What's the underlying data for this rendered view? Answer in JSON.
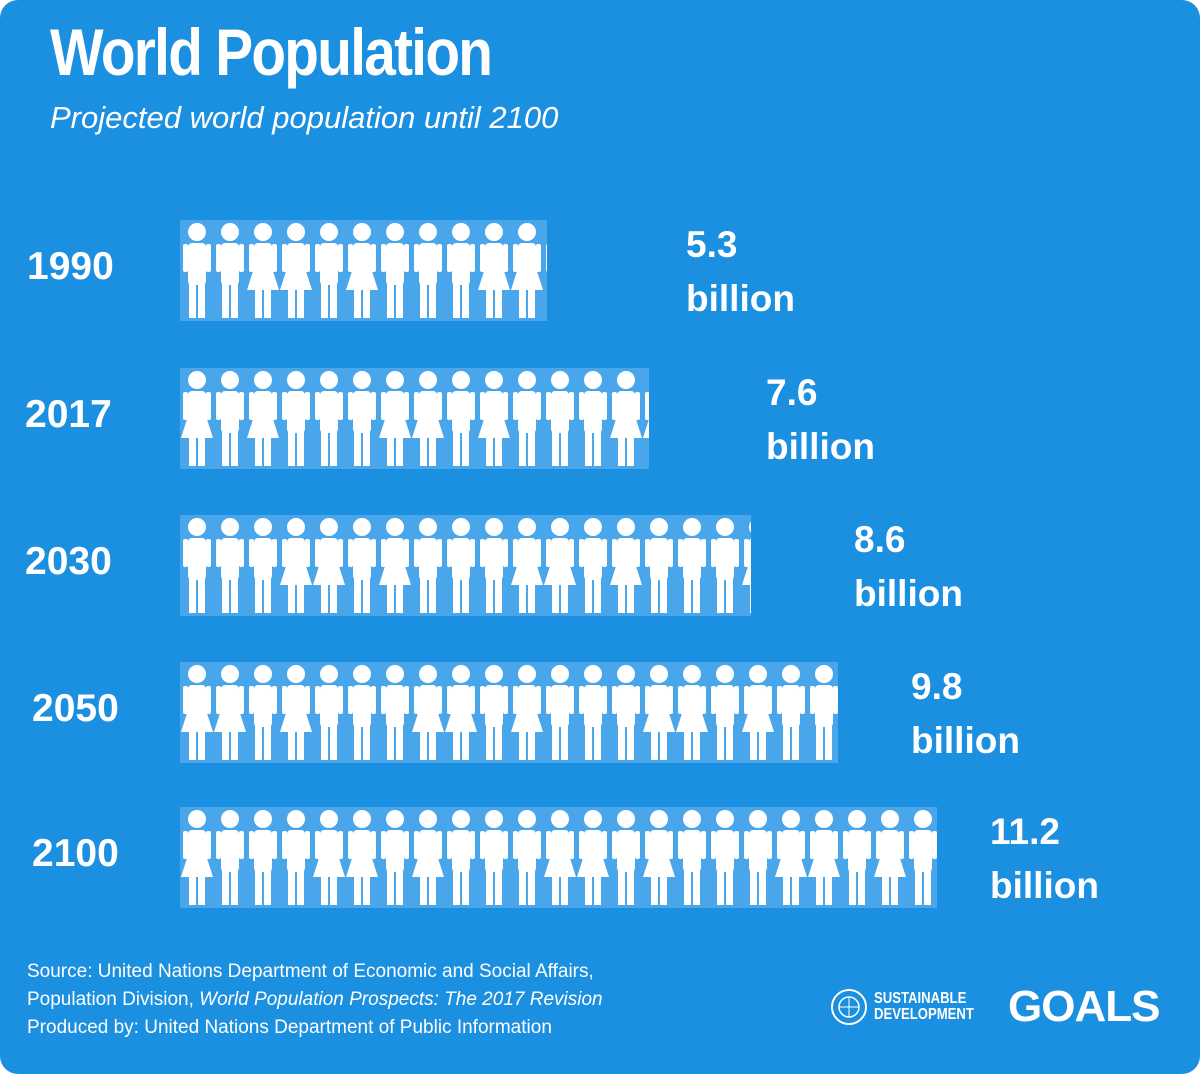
{
  "title": "World Population",
  "subtitle": "Projected world population until 2100",
  "chart_data": {
    "type": "bar",
    "orientation": "horizontal",
    "title": "World Population",
    "subtitle": "Projected world population until 2100",
    "categories": [
      "1990",
      "2017",
      "2030",
      "2050",
      "2100"
    ],
    "values": [
      5.3,
      7.6,
      8.6,
      9.8,
      11.2
    ],
    "value_labels": [
      {
        "num": "5.3",
        "unit": "billion"
      },
      {
        "num": "7.6",
        "unit": "billion"
      },
      {
        "num": "8.6",
        "unit": "billion"
      },
      {
        "num": "9.8",
        "unit": "billion"
      },
      {
        "num": "11.2",
        "unit": "billion"
      }
    ],
    "unit": "billion",
    "mark": "pictogram of people figures",
    "grid": false,
    "colors": {
      "background": "#1b8fe0",
      "bar": "#4aa6ea",
      "figure": "#ffffff"
    }
  },
  "source": {
    "line1": "Source: United Nations Department of Economic and Social Affairs,",
    "line2_plain": "Population Division, ",
    "line2_italic": "World Population Prospects: The 2017 Revision",
    "line3": "Produced by: United Nations Department of Public Information"
  },
  "logo": {
    "line1": "SUSTAINABLE",
    "line2": "DEVELOPMENT",
    "goals": "GOALS",
    "icon": "un-emblem-icon"
  }
}
